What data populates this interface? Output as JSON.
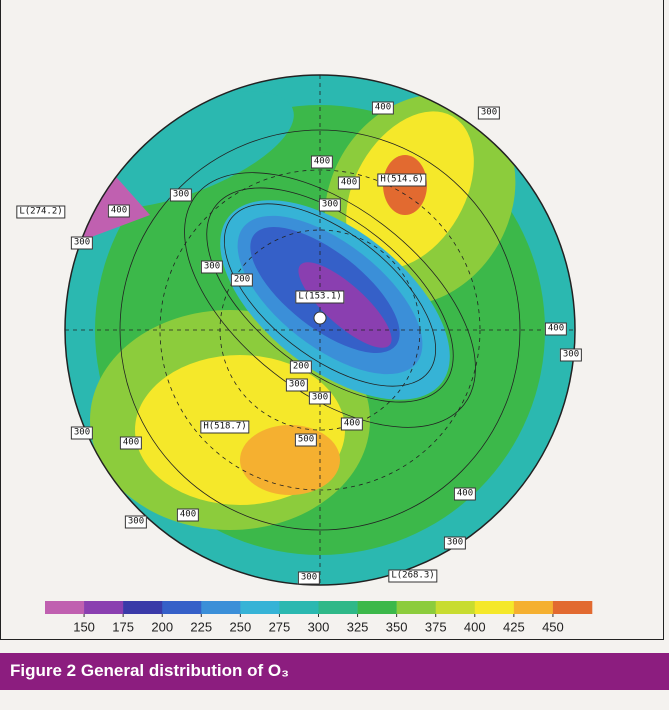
{
  "map": {
    "labels": [
      "300",
      "400",
      "300",
      "400",
      "400",
      "H(514.6)",
      "L(274.2)",
      "400",
      "300",
      "300",
      "300",
      "200",
      "L(153.1)",
      "400",
      "300",
      "200",
      "300",
      "300",
      "400",
      "H(518.7)",
      "500",
      "300",
      "400",
      "400",
      "400",
      "300",
      "300",
      "L(268.3)",
      "300"
    ],
    "colorbar": {
      "lim": [
        125,
        475
      ],
      "ticks": [
        150,
        175,
        200,
        225,
        250,
        275,
        300,
        325,
        350,
        375,
        400,
        425,
        450
      ],
      "colors": [
        "#c060b0",
        "#8a3fb0",
        "#3a3aa8",
        "#3560c8",
        "#3b8fd8",
        "#36b3d6",
        "#2bb8b0",
        "#2fb888",
        "#3cb84a",
        "#8ccc3c",
        "#c8dc30",
        "#f5e82a",
        "#f5b030",
        "#e26a30"
      ]
    },
    "caption": "Figure 2  General distribution of O₃"
  }
}
